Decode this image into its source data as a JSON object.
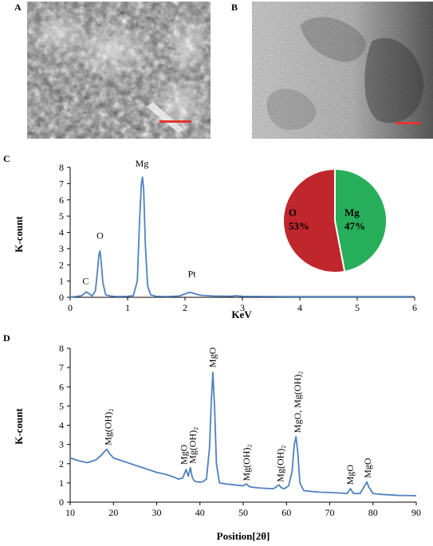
{
  "panels": {
    "a": {
      "label": "A"
    },
    "b": {
      "label": "B"
    },
    "c": {
      "label": "C"
    },
    "d": {
      "label": "D"
    }
  },
  "colors": {
    "line": "#4f81bd",
    "scalebar": "#e3342f",
    "pie_o": "#c0272d",
    "pie_mg": "#27ae5a"
  },
  "chart_data": [
    {
      "type": "line",
      "panel": "C",
      "xlabel": "KeV",
      "ylabel": "K-count",
      "xlim": [
        0,
        6
      ],
      "ylim": [
        0,
        8
      ],
      "xticks": [
        0,
        1,
        2,
        3,
        4,
        5,
        6
      ],
      "yticks": [
        0,
        1,
        2,
        3,
        4,
        5,
        6,
        7,
        8
      ],
      "grid": false,
      "series": [
        {
          "x": [
            0.0,
            0.1,
            0.2,
            0.25,
            0.28,
            0.32,
            0.38,
            0.44,
            0.48,
            0.5,
            0.52,
            0.54,
            0.57,
            0.62,
            0.7,
            0.8,
            0.9,
            1.0,
            1.1,
            1.17,
            1.21,
            1.24,
            1.26,
            1.28,
            1.31,
            1.35,
            1.4,
            1.5,
            1.7,
            1.9,
            2.0,
            2.05,
            2.1,
            2.15,
            2.2,
            2.3,
            2.5,
            2.8,
            2.9,
            3.0,
            3.5,
            4.0,
            4.5,
            5.0,
            5.5,
            6.0
          ],
          "y": [
            0.02,
            0.05,
            0.1,
            0.25,
            0.33,
            0.25,
            0.08,
            0.4,
            1.8,
            2.6,
            2.85,
            2.2,
            0.9,
            0.15,
            0.08,
            0.05,
            0.05,
            0.06,
            0.1,
            1.0,
            4.8,
            7.0,
            7.4,
            6.6,
            3.2,
            0.7,
            0.15,
            0.06,
            0.05,
            0.08,
            0.2,
            0.28,
            0.3,
            0.25,
            0.18,
            0.12,
            0.08,
            0.07,
            0.1,
            0.06,
            0.05,
            0.04,
            0.04,
            0.04,
            0.04,
            0.04
          ]
        }
      ],
      "annotations": [
        {
          "text": "C",
          "x": 0.27,
          "y": 0.8
        },
        {
          "text": "O",
          "x": 0.52,
          "y": 3.6
        },
        {
          "text": "Mg",
          "x": 1.25,
          "y": 8.05
        },
        {
          "text": "Pt",
          "x": 2.12,
          "y": 1.25
        }
      ]
    },
    {
      "type": "pie",
      "panel": "C",
      "slices": [
        {
          "label": "O",
          "value_label": "53%",
          "value": 53
        },
        {
          "label": "Mg",
          "value_label": "47%",
          "value": 47
        }
      ]
    },
    {
      "type": "line",
      "panel": "D",
      "xlabel": "Position[2θ]",
      "ylabel": "K-count",
      "xlim": [
        10,
        90
      ],
      "ylim": [
        0,
        8
      ],
      "xticks": [
        10,
        20,
        30,
        40,
        50,
        60,
        70,
        80,
        90
      ],
      "yticks": [
        0,
        1,
        2,
        3,
        4,
        5,
        6,
        7,
        8
      ],
      "grid": false,
      "series": [
        {
          "x": [
            10,
            12,
            14,
            16,
            17,
            18,
            18.5,
            19,
            20,
            22,
            24,
            26,
            28,
            30,
            32,
            34,
            35,
            36,
            36.8,
            37.3,
            37.8,
            38.2,
            38.7,
            39.5,
            40.5,
            41.5,
            42.2,
            42.6,
            43.0,
            43.4,
            43.8,
            44.5,
            46,
            48,
            50,
            50.7,
            51.5,
            53,
            55,
            57,
            58.3,
            58.8,
            59.5,
            60.5,
            61.3,
            61.8,
            62.2,
            62.6,
            63.1,
            64,
            66,
            68,
            70,
            72,
            74,
            74.8,
            75.5,
            77,
            78.2,
            78.6,
            79,
            80,
            82,
            84,
            86,
            88,
            90
          ],
          "y": [
            2.3,
            2.15,
            2.05,
            2.2,
            2.4,
            2.65,
            2.75,
            2.55,
            2.3,
            2.15,
            2.0,
            1.85,
            1.7,
            1.55,
            1.45,
            1.3,
            1.2,
            1.25,
            1.7,
            1.35,
            1.8,
            1.3,
            1.1,
            1.05,
            1.05,
            1.2,
            2.8,
            5.2,
            6.75,
            4.8,
            2.0,
            1.0,
            0.95,
            0.9,
            0.85,
            0.95,
            0.8,
            0.75,
            0.72,
            0.7,
            0.9,
            0.75,
            0.7,
            0.85,
            1.6,
            3.0,
            3.4,
            2.6,
            1.0,
            0.6,
            0.55,
            0.52,
            0.5,
            0.48,
            0.45,
            0.7,
            0.45,
            0.45,
            0.9,
            1.05,
            0.8,
            0.45,
            0.4,
            0.38,
            0.35,
            0.35,
            0.33
          ]
        }
      ],
      "annotations": [
        {
          "text": "Mg(OH)₂",
          "x": 19.5,
          "y": 2.95
        },
        {
          "text": "MgO",
          "x": 37.0,
          "y": 1.95
        },
        {
          "text": "Mg(OH)₂",
          "x": 39.0,
          "y": 2.0
        },
        {
          "text": "MgO",
          "x": 43.6,
          "y": 7.0
        },
        {
          "text": "Mg(OH)₂",
          "x": 51.5,
          "y": 1.1
        },
        {
          "text": "Mg(OH)₂",
          "x": 59.3,
          "y": 1.05
        },
        {
          "text": "MgO, Mg(OH)₂",
          "x": 63.3,
          "y": 3.6
        },
        {
          "text": "MgO",
          "x": 75.4,
          "y": 0.9
        },
        {
          "text": "MgO",
          "x": 79.5,
          "y": 1.25
        }
      ]
    }
  ]
}
